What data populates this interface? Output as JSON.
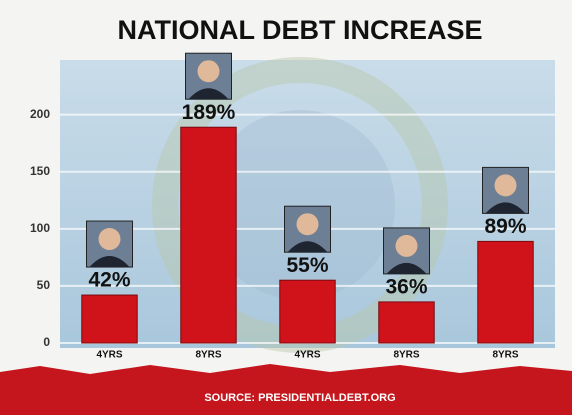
{
  "chart_data": {
    "type": "bar",
    "title": "NATIONAL DEBT INCREASE",
    "categories": [
      "4YRS",
      "8YRS",
      "4YRS",
      "8YRS",
      "8YRS"
    ],
    "values": [
      42,
      189,
      55,
      36,
      89
    ],
    "value_labels": [
      "42%",
      "189%",
      "55%",
      "36%",
      "89%"
    ],
    "color": "#d0121b",
    "ylim": [
      0,
      240
    ],
    "yticks": [
      0,
      50,
      100,
      150,
      200
    ],
    "grid": true,
    "source": "SOURCE: PRESIDENTIALDEBT.ORG"
  }
}
